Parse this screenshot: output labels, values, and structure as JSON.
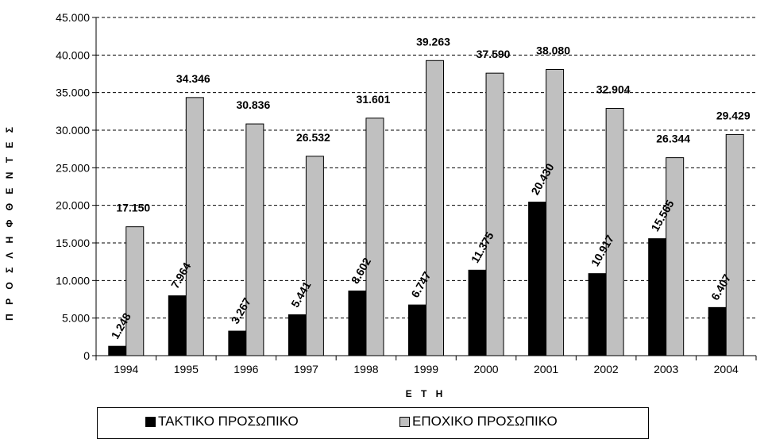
{
  "chart_data": {
    "type": "bar",
    "title": "",
    "xlabel": "Ε Τ Η",
    "ylabel": "Π Ρ Ο Σ Λ Η Φ Θ Ε Ν Τ Ε Σ",
    "ylim": [
      0,
      45000
    ],
    "yticks": [
      0,
      5000,
      10000,
      15000,
      20000,
      25000,
      30000,
      35000,
      40000,
      45000
    ],
    "ytick_labels": [
      "0",
      "5.000",
      "10.000",
      "15.000",
      "20.000",
      "25.000",
      "30.000",
      "35.000",
      "40.000",
      "45.000"
    ],
    "grid": "horizontal dashed",
    "legend_position": "bottom",
    "categories": [
      "1994",
      "1995",
      "1996",
      "1997",
      "1998",
      "1999",
      "2000",
      "2001",
      "2002",
      "2003",
      "2004"
    ],
    "series": [
      {
        "name": "ΤΑΚΤΙΚΟ ΠΡΟΣΩΠΙΚΟ",
        "color": "#000000",
        "values": [
          1248,
          7964,
          3267,
          5441,
          8602,
          6747,
          11375,
          20430,
          10917,
          15565,
          6407
        ],
        "labels": [
          "1.248",
          "7.964",
          "3.267",
          "5.441",
          "8.602",
          "6.747",
          "11.375",
          "20.430",
          "10.917",
          "15.565",
          "6.407"
        ]
      },
      {
        "name": "ΕΠΟΧΙΚΟ ΠΡΟΣΩΠΙΚΟ",
        "color": "#c0c0c0",
        "values": [
          17150,
          34346,
          30836,
          26532,
          31601,
          39263,
          37590,
          38080,
          32904,
          26344,
          29429
        ],
        "labels": [
          "17.150",
          "34.346",
          "30.836",
          "26.532",
          "31.601",
          "39.263",
          "37.590",
          "38.080",
          "32.904",
          "26.344",
          "29.429"
        ]
      }
    ]
  }
}
